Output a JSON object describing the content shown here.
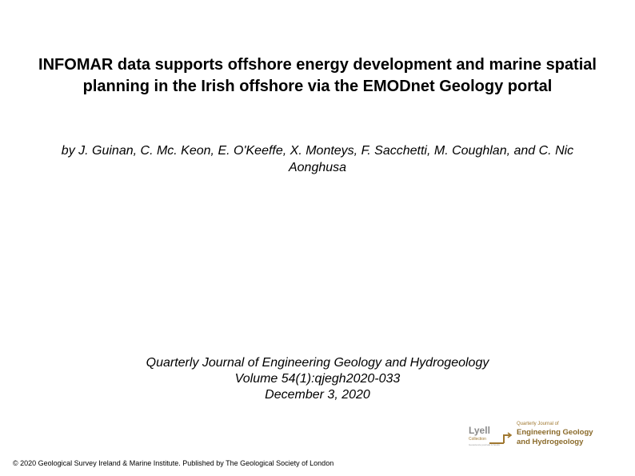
{
  "slide": {
    "title": "INFOMAR data supports offshore energy development and marine spatial planning in the Irish offshore via the EMODnet Geology portal",
    "authors": "by J. Guinan, C. Mc. Keon, E. O'Keeffe, X. Monteys, F. Sacchetti, M. Coughlan, and C. Nic Aonghusa",
    "citation": {
      "journal": "Quarterly Journal of Engineering Geology and Hydrogeology",
      "volume": "Volume 54(1):qjegh2020-033",
      "date": "December 3, 2020"
    },
    "copyright": "© 2020 Geological Survey Ireland & Marine Institute. Published by The Geological Society of London"
  },
  "logo": {
    "lyell_word": "Lyell",
    "lyell_sub": "Collection",
    "lyell_tag": "Geoscience journals & books",
    "journal_small": "Quarterly Journal of",
    "journal_line1": "Engineering Geology",
    "journal_line2": "and Hydrogeology"
  },
  "colors": {
    "text": "#000000",
    "background": "#ffffff",
    "logo_grey": "#8a8a8a",
    "logo_gold": "#a07830"
  }
}
